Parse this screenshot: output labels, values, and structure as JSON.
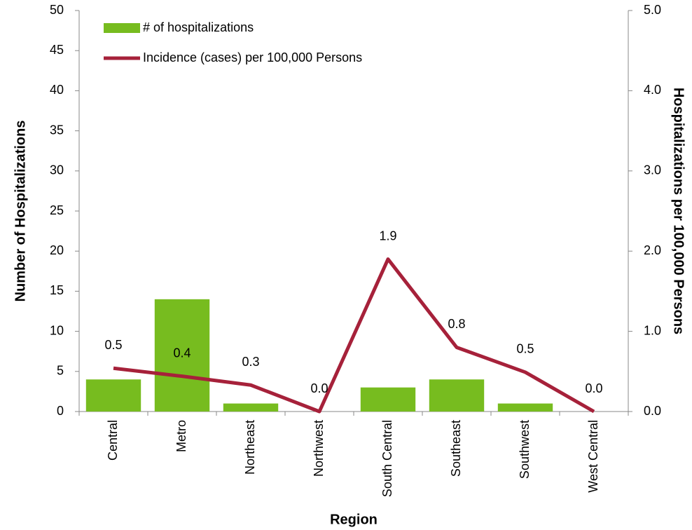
{
  "chart_data": {
    "type": "bar",
    "x_label": "Region",
    "y_label": "Number of Hospitalizations",
    "y2_label": "Hospitalizations per 100,000 Persons",
    "categories": [
      "Central",
      "Metro",
      "Northeast",
      "Northwest",
      "South Central",
      "Southeast",
      "Southwest",
      "West Central"
    ],
    "series": [
      {
        "name": "# of hospitalizations",
        "type": "bar",
        "color": "#77bc1f",
        "values": [
          4,
          14,
          1,
          0,
          3,
          4,
          1,
          0
        ]
      },
      {
        "name": "Incidence (cases) per 100,000 Persons",
        "type": "line",
        "axis": "y2",
        "color": "#a6213a",
        "values": [
          0.54,
          0.44,
          0.33,
          0,
          1.9,
          0.8,
          0.49,
          0
        ],
        "value_labels": [
          "0.5",
          "0.4",
          "0.3",
          "0.0",
          "1.9",
          "0.8",
          "0.5",
          "0.0"
        ]
      }
    ],
    "ylim": [
      0,
      50
    ],
    "yticks": [
      0,
      5,
      10,
      15,
      20,
      25,
      30,
      35,
      40,
      45,
      50
    ],
    "y2lim": [
      0,
      5
    ],
    "y2ticks": [
      {
        "value": 0,
        "label": "0.0"
      },
      {
        "value": 1,
        "label": "1.0"
      },
      {
        "value": 2,
        "label": "2.0"
      },
      {
        "value": 3,
        "label": "3.0"
      },
      {
        "value": 4,
        "label": "4.0"
      },
      {
        "value": 5,
        "label": "5.0"
      }
    ],
    "grid": false,
    "legend": "top-left"
  }
}
